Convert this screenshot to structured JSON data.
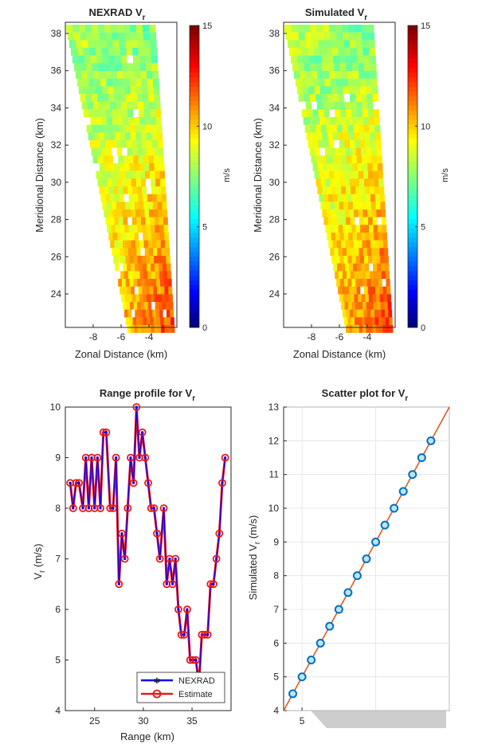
{
  "chart_data": [
    {
      "type": "heatmap",
      "title": "NEXRAD V",
      "title_sub": "r",
      "xlabel": "Zonal Distance (km)",
      "ylabel": "Meridional Distance (km)",
      "xticks": [
        -8,
        -6,
        -4
      ],
      "yticks": [
        24,
        26,
        28,
        30,
        32,
        34,
        36,
        38
      ],
      "xlim": [
        -10,
        -2
      ],
      "ylim": [
        22.2,
        38.6
      ],
      "colorbar": {
        "label": "m/s",
        "ticks": [
          0,
          5,
          10,
          15
        ],
        "range": [
          0,
          15
        ]
      },
      "field": "Radial velocity sector; values roughly 6–9 m/s in the upper (north) region, rising to 10–13 m/s in the lower-right (south-east) region"
    },
    {
      "type": "heatmap",
      "title": "Simulated V",
      "title_sub": "r",
      "xlabel": "Zonal Distance (km)",
      "ylabel": "Meridional Distance (km)",
      "xticks": [
        -8,
        -6,
        -4
      ],
      "yticks": [
        24,
        26,
        28,
        30,
        32,
        34,
        36,
        38
      ],
      "xlim": [
        -10,
        -2
      ],
      "ylim": [
        22.2,
        38.6
      ],
      "colorbar": {
        "label": "m/s",
        "ticks": [
          0,
          5,
          10,
          15
        ],
        "range": [
          0,
          15
        ]
      },
      "field": "Simulated radial velocity sector; nearly identical to NEXRAD field"
    },
    {
      "type": "line",
      "title": "Range profile for V",
      "title_sub": "r",
      "xlabel": "Range (km)",
      "ylabel": "V",
      "ylabel_sub": "r",
      "ylabel_unit": " (m/s)",
      "xlim": [
        22,
        39
      ],
      "ylim": [
        4,
        10
      ],
      "xticks": [
        25,
        30,
        35
      ],
      "yticks": [
        4,
        5,
        6,
        7,
        8,
        9,
        10
      ],
      "legend_position": "bottom-right",
      "x": [
        22.5,
        22.8,
        23.1,
        23.4,
        23.8,
        24.1,
        24.4,
        24.7,
        25.0,
        25.3,
        25.6,
        25.9,
        26.2,
        26.6,
        26.9,
        27.2,
        27.5,
        27.8,
        28.1,
        28.4,
        28.7,
        29.0,
        29.3,
        29.6,
        29.9,
        30.2,
        30.5,
        30.8,
        31.1,
        31.4,
        31.7,
        32.1,
        32.4,
        32.7,
        33.0,
        33.3,
        33.6,
        33.9,
        34.2,
        34.5,
        34.8,
        35.1,
        35.4,
        35.7,
        36.0,
        36.3,
        36.6,
        36.9,
        37.2,
        37.5,
        37.8,
        38.1,
        38.4
      ],
      "series": [
        {
          "name": "NEXRAD",
          "color": "#0000ff",
          "values": [
            8.5,
            8.0,
            8.5,
            8.5,
            8.0,
            9.0,
            8.0,
            9.0,
            8.0,
            9.0,
            8.0,
            9.5,
            9.5,
            8.0,
            8.0,
            9.0,
            6.5,
            7.5,
            7.0,
            8.0,
            9.0,
            8.5,
            10.0,
            9.0,
            9.5,
            9.0,
            8.5,
            8.0,
            8.0,
            7.5,
            7.0,
            8.0,
            6.5,
            7.0,
            6.5,
            7.0,
            6.0,
            5.5,
            5.5,
            6.0,
            5.0,
            5.0,
            5.0,
            4.5,
            5.5,
            5.5,
            5.5,
            6.5,
            6.5,
            7.0,
            7.5,
            8.5,
            9.0
          ]
        },
        {
          "name": "Estimate",
          "color": "#e61919",
          "values": [
            8.5,
            8.0,
            8.5,
            8.5,
            8.0,
            9.0,
            8.0,
            9.0,
            8.0,
            9.0,
            8.0,
            9.5,
            9.5,
            8.0,
            8.0,
            9.0,
            6.5,
            7.5,
            7.0,
            8.0,
            9.0,
            8.5,
            10.0,
            9.0,
            9.5,
            9.0,
            8.5,
            8.0,
            8.0,
            7.5,
            7.0,
            8.0,
            6.5,
            7.0,
            6.5,
            7.0,
            6.0,
            5.5,
            5.5,
            6.0,
            5.0,
            5.0,
            5.0,
            4.5,
            5.5,
            5.5,
            5.5,
            6.5,
            6.5,
            7.0,
            7.5,
            8.5,
            9.0
          ]
        }
      ]
    },
    {
      "type": "scatter",
      "title": "Scatter plot for V",
      "title_sub": "r",
      "xlabel": "",
      "ylabel": "Simulated V",
      "ylabel_sub": "r",
      "ylabel_unit": " (m/s)",
      "xlim": [
        4,
        13
      ],
      "ylim": [
        4,
        13
      ],
      "xticks": [
        5
      ],
      "yticks": [
        4,
        5,
        6,
        7,
        8,
        9,
        10,
        11,
        12,
        13
      ],
      "x": [
        4.5,
        5.0,
        5.5,
        6.0,
        6.5,
        7.0,
        7.5,
        8.0,
        8.5,
        9.0,
        9.5,
        10.0,
        10.5,
        11.0,
        11.5,
        12.0
      ],
      "y": [
        4.5,
        5.0,
        5.5,
        6.0,
        6.5,
        7.0,
        7.5,
        8.0,
        8.5,
        9.0,
        9.5,
        10.0,
        10.5,
        11.0,
        11.5,
        12.0
      ],
      "fit_line": {
        "slope": 1,
        "intercept": 0,
        "color": "#d95319"
      },
      "marker_color": "#0072bd"
    }
  ],
  "colors": {
    "nexrad": "#0000ff",
    "estimate": "#e61919",
    "fit": "#d95319",
    "scatter": "#0072bd"
  }
}
